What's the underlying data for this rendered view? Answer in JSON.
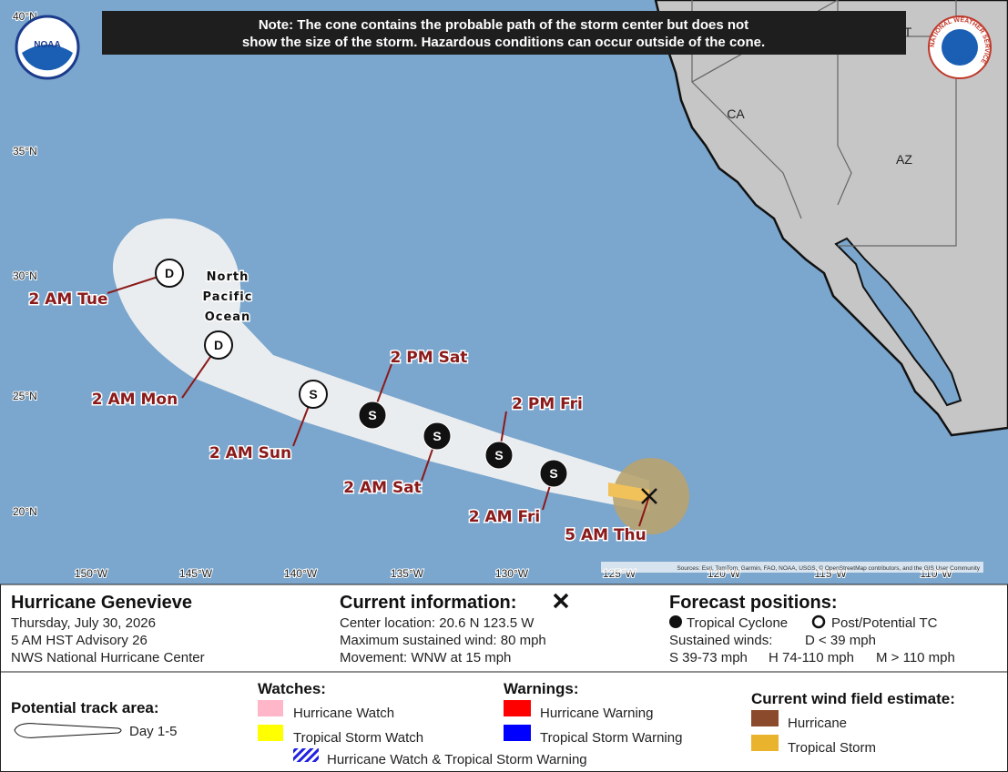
{
  "note": [
    "Note: The cone contains the probable path of the storm center but does not",
    "show the size of the storm. Hazardous conditions can occur outside of the cone."
  ],
  "map": {
    "lat_labels": [
      "40°N",
      "35°N",
      "30°N",
      "25°N",
      "20°N"
    ],
    "lon_labels": [
      "150°W",
      "145°W",
      "140°W",
      "135°W",
      "130°W",
      "125°W",
      "120°W",
      "115°W",
      "110°W"
    ],
    "region_labels": [
      "CA",
      "AZ",
      "T"
    ],
    "ocean_label": [
      "North",
      "Pacific",
      "Ocean"
    ],
    "points": [
      {
        "label": "2 AM Tue",
        "symbol": "D"
      },
      {
        "label": "2 AM Mon",
        "symbol": "D"
      },
      {
        "label": "2 AM Sun",
        "symbol": "S"
      },
      {
        "label": "2 PM Sat",
        "symbol": "S"
      },
      {
        "label": "2 AM Sat",
        "symbol": "S"
      },
      {
        "label": "2 PM Fri",
        "symbol": "S"
      },
      {
        "label": "2 AM Fri",
        "symbol": "S"
      },
      {
        "label": "5 AM Thu"
      }
    ],
    "sources": "Sources: Esri, TomTom, Garmin, FAO, NOAA, USGS, © OpenStreetMap contributors, and the GIS User Community"
  },
  "logos": {
    "noaa": "NOAA",
    "nws": "NATIONAL WEATHER SERVICE"
  },
  "info": {
    "title": "Hurricane Genevieve",
    "details": [
      "Thursday, July 30, 2026",
      "5 AM HST Advisory 26",
      "NWS National Hurricane Center"
    ]
  },
  "current": {
    "heading": "Current information:",
    "lines": [
      "Center location: 20.6 N 123.5 W",
      "Maximum sustained wind: 80 mph",
      "Movement: WNW at 15 mph"
    ]
  },
  "forecast": {
    "heading": "Forecast positions:",
    "tropical": "Tropical Cyclone",
    "post": "Post/Potential TC",
    "winds_label": "Sustained winds:",
    "scale": [
      "D < 39 mph",
      "S 39-73 mph",
      "H 74-110 mph",
      "M > 110 mph"
    ]
  },
  "legend": {
    "track": {
      "heading": "Potential track area:",
      "item": "Day 1-5"
    },
    "watches": {
      "heading": "Watches:",
      "items": [
        "Hurricane Watch",
        "Tropical Storm Watch",
        "Hurricane Watch & Tropical Storm Warning"
      ]
    },
    "warnings": {
      "heading": "Warnings:",
      "items": [
        "Hurricane Warning",
        "Tropical Storm Warning"
      ]
    },
    "wind_field": {
      "heading": "Current wind field estimate:",
      "items": [
        "Hurricane",
        "Tropical Storm"
      ]
    }
  }
}
